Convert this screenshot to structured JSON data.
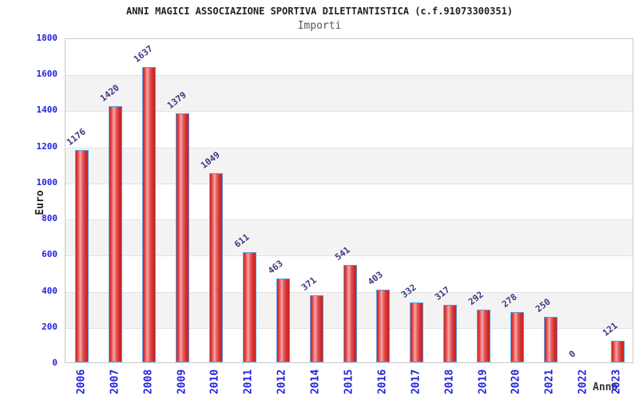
{
  "header": {
    "title": "ANNI MAGICI ASSOCIAZIONE SPORTIVA DILETTANTISTICA (c.f.91073300351)",
    "subtitle": "Importi"
  },
  "axes": {
    "ylabel": "Euro",
    "xlabel": "Anno"
  },
  "chart_data": {
    "type": "bar",
    "title": "ANNI MAGICI ASSOCIAZIONE SPORTIVA DILETTANTISTICA (c.f.91073300351)",
    "subtitle": "Importi",
    "xlabel": "Anno",
    "ylabel": "Euro",
    "categories": [
      "2006",
      "2007",
      "2008",
      "2009",
      "2010",
      "2011",
      "2012",
      "2014",
      "2015",
      "2016",
      "2017",
      "2018",
      "2019",
      "2020",
      "2021",
      "2022",
      "2023"
    ],
    "values": [
      1176,
      1420,
      1637,
      1379,
      1049,
      611,
      463,
      371,
      541,
      403,
      332,
      317,
      292,
      278,
      250,
      0,
      121
    ],
    "ylim": [
      0,
      1800
    ],
    "yticks": [
      "0",
      "200",
      "400",
      "600",
      "800",
      "1000",
      "1200",
      "1400",
      "1600",
      "1800"
    ],
    "grid": "alternating horizontal bands every 200, gridlines at band edges",
    "legend": "none",
    "value_labels": "above bars, rotated",
    "x_tick_labels": "rotated 90deg, blue",
    "colors": {
      "bar_fill_edge": "#c92020",
      "bar_fill_highlight": "#f2a8a8",
      "bar_border": "#5c9ce0",
      "tick_label": "#2222dd",
      "value_label": "#3a3a80",
      "band_gray": "#f3f3f3",
      "gridline": "#e2e2e2",
      "plot_border": "#c9c9c9",
      "title": "#222222",
      "subtitle": "#555555",
      "axis_title": "#222222",
      "background": "#ffffff"
    }
  }
}
